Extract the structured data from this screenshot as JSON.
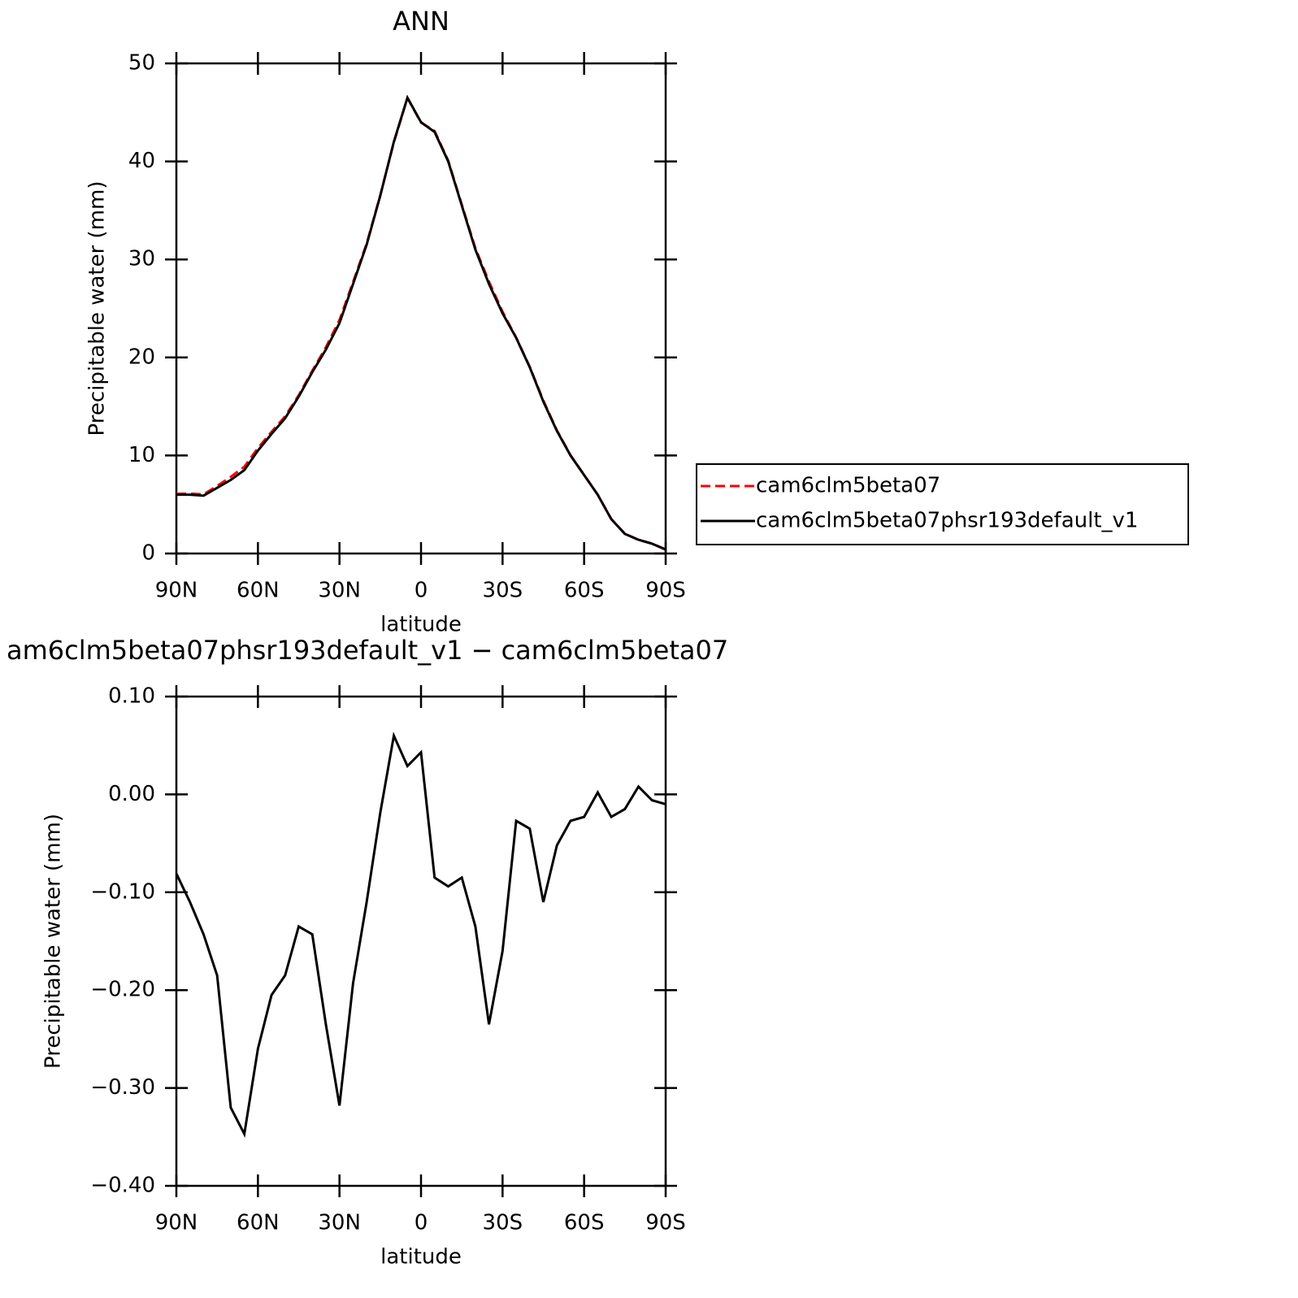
{
  "chart_data": [
    {
      "type": "line",
      "title": "ANN",
      "xlabel": "latitude",
      "ylabel": "Precipitable water (mm)",
      "x": [
        90,
        85,
        80,
        75,
        70,
        65,
        60,
        55,
        50,
        45,
        40,
        35,
        30,
        25,
        20,
        15,
        10,
        5,
        0,
        -5,
        -10,
        -15,
        -20,
        -25,
        -30,
        -35,
        -40,
        -45,
        -50,
        -55,
        -60,
        -65,
        -70,
        -75,
        -80,
        -85,
        -90
      ],
      "series": [
        {
          "name": "cam6clm5beta07",
          "color": "#ff0000",
          "line_style": "dashed",
          "values": [
            6.08,
            6.11,
            6.04,
            6.89,
            7.82,
            8.85,
            10.76,
            12.41,
            13.99,
            16.14,
            18.64,
            21.04,
            23.82,
            27.69,
            31.61,
            36.52,
            41.94,
            46.47,
            43.96,
            43.09,
            40.09,
            35.59,
            31.14,
            27.74,
            24.66,
            22.03,
            19.04,
            15.61,
            12.55,
            10.03,
            8.02,
            6.0,
            3.52,
            2.02,
            1.39,
            1.01,
            0.41
          ]
        },
        {
          "name": "cam6clm5beta07phsr193default_v1",
          "color": "#000000",
          "line_style": "solid",
          "values": [
            6.0,
            6.0,
            5.9,
            6.7,
            7.5,
            8.5,
            10.5,
            12.2,
            13.8,
            16.0,
            18.5,
            20.8,
            23.5,
            27.5,
            31.5,
            36.5,
            42.0,
            46.5,
            44.0,
            43.0,
            40.0,
            35.5,
            31.0,
            27.5,
            24.5,
            22.0,
            19.0,
            15.5,
            12.5,
            10.0,
            8.0,
            6.0,
            3.5,
            2.0,
            1.4,
            1.0,
            0.4
          ]
        }
      ],
      "xlim": [
        90,
        -90
      ],
      "xticks": [
        {
          "value": 90,
          "label": "90N"
        },
        {
          "value": 60,
          "label": "60N"
        },
        {
          "value": 30,
          "label": "30N"
        },
        0,
        {
          "value": -30,
          "label": "30S"
        },
        {
          "value": -60,
          "label": "60S"
        },
        {
          "value": -90,
          "label": "90S"
        }
      ],
      "ylim": [
        0,
        50
      ],
      "yticks": [
        0,
        10,
        20,
        30,
        40,
        50
      ],
      "legend": "outside right"
    },
    {
      "type": "line",
      "title": "am6clm5beta07phsr193default_v1 − cam6clm5beta07",
      "xlabel": "latitude",
      "ylabel": "Precipitable water (mm)",
      "x": [
        90,
        85,
        80,
        75,
        70,
        65,
        60,
        55,
        50,
        45,
        40,
        35,
        30,
        25,
        20,
        15,
        10,
        5,
        0,
        -5,
        -10,
        -15,
        -20,
        -25,
        -30,
        -35,
        -40,
        -45,
        -50,
        -55,
        -60,
        -65,
        -70,
        -75,
        -80,
        -85,
        -90
      ],
      "series": [
        {
          "color": "#000000",
          "line_style": "solid",
          "values": [
            -0.081,
            -0.11,
            -0.143,
            -0.185,
            -0.32,
            -0.347,
            -0.26,
            -0.205,
            -0.185,
            -0.135,
            -0.143,
            -0.235,
            -0.318,
            -0.193,
            -0.11,
            -0.019,
            0.06,
            0.029,
            0.043,
            -0.085,
            -0.094,
            -0.085,
            -0.135,
            -0.235,
            -0.16,
            -0.027,
            -0.035,
            -0.11,
            -0.052,
            -0.027,
            -0.023,
            0.002,
            -0.023,
            -0.015,
            0.008,
            -0.006,
            -0.01
          ]
        }
      ],
      "xlim": [
        90,
        -90
      ],
      "xticks": [
        {
          "value": 90,
          "label": "90N"
        },
        {
          "value": 60,
          "label": "60N"
        },
        {
          "value": 30,
          "label": "30N"
        },
        0,
        {
          "value": -30,
          "label": "30S"
        },
        {
          "value": -60,
          "label": "60S"
        },
        {
          "value": -90,
          "label": "90S"
        }
      ],
      "ylim": [
        -0.4,
        0.1
      ],
      "yticks": [
        {
          "value": -0.4,
          "label": "−0.40"
        },
        {
          "value": -0.3,
          "label": "−0.30"
        },
        {
          "value": -0.2,
          "label": "−0.20"
        },
        {
          "value": -0.1,
          "label": "−0.10"
        },
        {
          "value": 0,
          "label": "0.00"
        },
        {
          "value": 0.1,
          "label": "0.10"
        }
      ]
    }
  ]
}
